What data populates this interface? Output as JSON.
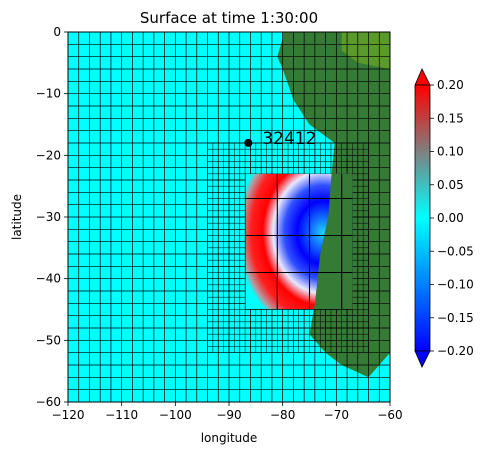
{
  "chart_data": {
    "type": "heatmap",
    "title": "Surface at time 1:30:00",
    "xlabel": "longitude",
    "ylabel": "latitude",
    "xlim": [
      -120,
      -60
    ],
    "ylim": [
      -60,
      0
    ],
    "x_ticks": [
      "−120",
      "−110",
      "−100",
      "−90",
      "−80",
      "−70",
      "−60"
    ],
    "x_tick_values": [
      -120,
      -110,
      -100,
      -90,
      -80,
      -70,
      -60
    ],
    "y_ticks": [
      "0",
      "−10",
      "−20",
      "−30",
      "−40",
      "−50",
      "−60"
    ],
    "y_tick_values": [
      0,
      -10,
      -20,
      -30,
      -40,
      -50,
      -60
    ],
    "colorbar": {
      "min": -0.2,
      "max": 0.2,
      "extend": "both",
      "ticks": [
        "0.20",
        "0.15",
        "0.10",
        "0.05",
        "0.00",
        "−0.05",
        "−0.10",
        "−0.15",
        "−0.20"
      ],
      "tick_values": [
        0.2,
        0.15,
        0.1,
        0.05,
        0.0,
        -0.05,
        -0.1,
        -0.15,
        -0.2
      ],
      "colors": {
        "low": "#0000ff",
        "mid": "#00ffff",
        "high": "#ff0000"
      }
    },
    "gauge": {
      "label": "32412",
      "lon": -86.4,
      "lat": -17.98
    },
    "grid_levels": [
      {
        "name": "level 1",
        "cell_deg": 2.0,
        "extent": {
          "lon": [
            -120,
            -60
          ],
          "lat": [
            -60,
            0
          ]
        }
      },
      {
        "name": "level 2",
        "cell_deg": 1.0,
        "extent": {
          "lon": [
            -94,
            -64
          ],
          "lat": [
            -52,
            -18
          ]
        }
      },
      {
        "name": "level 3",
        "cell_deg": 6.0,
        "extent": {
          "lon": [
            -87,
            -67
          ],
          "lat": [
            -45,
            -23
          ]
        }
      }
    ],
    "land_color": "#357a35",
    "water_color": "#00ffff"
  }
}
